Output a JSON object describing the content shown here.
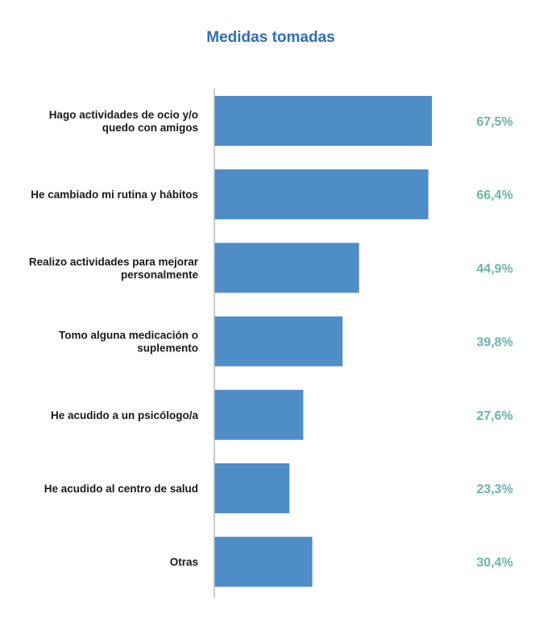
{
  "chart_data": {
    "type": "bar",
    "orientation": "horizontal",
    "title": "Medidas tomadas",
    "categories": [
      [
        "Hago actividades de ocio y/o",
        "quedo con amigos"
      ],
      [
        "He cambiado mi rutina y hábitos"
      ],
      [
        "Realizo actividades para mejorar",
        "personalmente"
      ],
      [
        "Tomo alguna medicación o",
        "suplemento"
      ],
      [
        "He acudido a un psicólogo/a"
      ],
      [
        "He acudido al centro de salud"
      ],
      [
        "Otras"
      ]
    ],
    "values": [
      67.5,
      66.4,
      44.9,
      39.8,
      27.6,
      23.3,
      30.4
    ],
    "value_labels": [
      "67,5%",
      "66,4%",
      "44,9%",
      "39,8%",
      "27,6%",
      "23,3%",
      "30,4%"
    ],
    "xlim": [
      0,
      100
    ],
    "grid": false,
    "legend": "none",
    "colors": {
      "bar": "#4f8dc9",
      "value_text": "#6bb5a6",
      "title": "#2f6db5",
      "axis": "#b8b8b8",
      "label_text": "#1a1a1a"
    }
  }
}
